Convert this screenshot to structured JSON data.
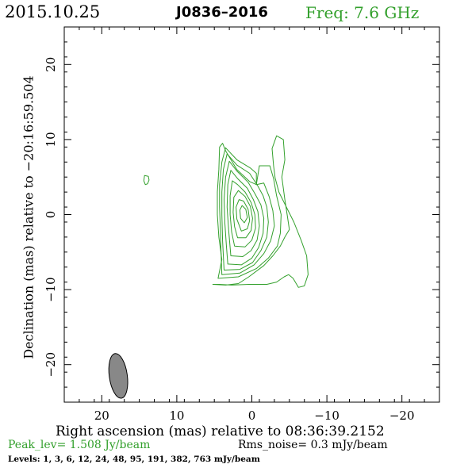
{
  "header": {
    "date": "2015.10.25",
    "source": "J0836–2016",
    "freq": "Freq: 7.6 GHz"
  },
  "footer": {
    "peak": "Peak_lev=  1.508 Jy/beam",
    "rms": "Rms_noise=  0.3 mJy/beam",
    "levels": "Levels:   1,   3,   6,  12,  24,  48,  95, 191, 382, 763 mJy/beam"
  },
  "colors": {
    "contour": "#33a02c",
    "beam": "#888888",
    "frame": "#000000"
  },
  "chart_data": {
    "type": "contour",
    "xlabel": "Right ascension (mas) relative to 08:36:39.2152",
    "ylabel": "Declination (mas) relative to −20:16:59.504",
    "xlim": [
      25,
      -25
    ],
    "ylim": [
      -25,
      25
    ],
    "x_ticks": [
      20,
      10,
      0,
      -10,
      -20
    ],
    "y_ticks": [
      20,
      10,
      0,
      -10,
      -20
    ],
    "x_tick_labels": [
      "20",
      "10",
      "0",
      "−10",
      "−20"
    ],
    "y_tick_labels": [
      "20",
      "10",
      "0",
      "−10",
      "−20"
    ],
    "contour_levels_mJy_per_beam": [
      1,
      3,
      6,
      12,
      24,
      48,
      95,
      191,
      382,
      763
    ],
    "core": {
      "x": 0,
      "y": 0.5
    },
    "contours": [
      [
        [
          5.2,
          -9.3
        ],
        [
          3.5,
          -9.4
        ],
        [
          1.8,
          -9.2
        ],
        [
          0.4,
          -8.3
        ],
        [
          -1.6,
          -6.8
        ],
        [
          -2.8,
          -5.5
        ],
        [
          -3.8,
          -4.2
        ],
        [
          -4.4,
          -3.0
        ],
        [
          -5.0,
          -2.0
        ],
        [
          -4.7,
          0.0
        ],
        [
          -4.4,
          2.0
        ],
        [
          -4.0,
          5.0
        ],
        [
          -4.4,
          7.3
        ],
        [
          -4.2,
          10.0
        ],
        [
          -3.3,
          10.5
        ],
        [
          -2.7,
          8.8
        ],
        [
          -2.9,
          6.5
        ],
        [
          -3.1,
          4.9
        ],
        [
          -3.6,
          3.0
        ],
        [
          -4.6,
          1.0
        ],
        [
          -5.6,
          -1.0
        ],
        [
          -6.6,
          -3.5
        ],
        [
          -7.3,
          -5.5
        ],
        [
          -7.5,
          -8.0
        ],
        [
          -7.0,
          -9.5
        ],
        [
          -6.2,
          -9.7
        ],
        [
          -5.5,
          -8.5
        ],
        [
          -4.9,
          -8.0
        ],
        [
          -4.3,
          -8.3
        ],
        [
          -3.3,
          -9.0
        ],
        [
          -2.0,
          -9.3
        ],
        [
          0.4,
          -9.3
        ],
        [
          2.7,
          -9.4
        ],
        [
          4.3,
          -9.3
        ],
        [
          5.2,
          -9.3
        ]
      ],
      [
        [
          4.5,
          -8.5
        ],
        [
          1.8,
          -8.3
        ],
        [
          -0.6,
          -7.2
        ],
        [
          -2.2,
          -5.8
        ],
        [
          -3.4,
          -4.2
        ],
        [
          -3.8,
          -2.5
        ],
        [
          -3.9,
          0.0
        ],
        [
          -3.3,
          2.5
        ],
        [
          -2.9,
          4.8
        ],
        [
          -2.4,
          6.5
        ],
        [
          -1.0,
          6.5
        ],
        [
          -0.6,
          4.0
        ],
        [
          0.3,
          4.4
        ],
        [
          2.0,
          6.0
        ],
        [
          3.5,
          8.5
        ],
        [
          3.9,
          9.5
        ],
        [
          4.3,
          9.0
        ],
        [
          4.4,
          6.0
        ],
        [
          4.6,
          3.0
        ],
        [
          4.6,
          0.0
        ],
        [
          4.4,
          -3.0
        ],
        [
          4.0,
          -6.0
        ],
        [
          4.5,
          -8.5
        ]
      ],
      [
        [
          4.0,
          -8.0
        ],
        [
          1.6,
          -7.8
        ],
        [
          -0.3,
          -6.7
        ],
        [
          -1.6,
          -5.2
        ],
        [
          -2.5,
          -3.5
        ],
        [
          -3.0,
          -1.5
        ],
        [
          -2.8,
          0.5
        ],
        [
          -2.3,
          2.4
        ],
        [
          -1.6,
          4.2
        ],
        [
          -0.6,
          4.0
        ],
        [
          -0.6,
          5.5
        ],
        [
          0.2,
          6.2
        ],
        [
          2.0,
          7.3
        ],
        [
          3.5,
          8.9
        ],
        [
          4.0,
          7.0
        ],
        [
          4.3,
          4.0
        ],
        [
          4.3,
          1.0
        ],
        [
          4.2,
          -2.0
        ],
        [
          4.1,
          -5.0
        ],
        [
          4.0,
          -8.0
        ]
      ],
      [
        [
          3.7,
          -7.4
        ],
        [
          1.6,
          -7.3
        ],
        [
          -0.1,
          -6.4
        ],
        [
          -1.2,
          -4.8
        ],
        [
          -2.0,
          -3.0
        ],
        [
          -2.2,
          -1.0
        ],
        [
          -2.0,
          1.0
        ],
        [
          -1.5,
          2.5
        ],
        [
          -0.8,
          3.8
        ],
        [
          0.3,
          5.5
        ],
        [
          2.0,
          6.6
        ],
        [
          3.3,
          8.1
        ],
        [
          3.8,
          6.0
        ],
        [
          4.0,
          3.0
        ],
        [
          4.0,
          0.0
        ],
        [
          3.9,
          -3.5
        ],
        [
          3.7,
          -7.4
        ]
      ],
      [
        [
          3.2,
          -6.6
        ],
        [
          1.4,
          -6.7
        ],
        [
          0.0,
          -5.8
        ],
        [
          -0.9,
          -4.4
        ],
        [
          -1.5,
          -2.5
        ],
        [
          -1.6,
          -0.5
        ],
        [
          -1.2,
          1.3
        ],
        [
          -0.4,
          2.8
        ],
        [
          0.5,
          4.3
        ],
        [
          2.0,
          5.8
        ],
        [
          3.0,
          7.1
        ],
        [
          3.5,
          5.0
        ],
        [
          3.7,
          2.0
        ],
        [
          3.6,
          -1.0
        ],
        [
          3.4,
          -4.0
        ],
        [
          3.2,
          -6.6
        ]
      ],
      [
        [
          2.8,
          -5.5
        ],
        [
          1.2,
          -5.6
        ],
        [
          0.1,
          -4.8
        ],
        [
          -0.7,
          -3.4
        ],
        [
          -1.0,
          -1.5
        ],
        [
          -0.8,
          0.4
        ],
        [
          -0.2,
          2.0
        ],
        [
          0.6,
          3.5
        ],
        [
          1.9,
          4.8
        ],
        [
          2.8,
          5.9
        ],
        [
          3.2,
          4.0
        ],
        [
          3.3,
          1.0
        ],
        [
          3.1,
          -2.0
        ],
        [
          2.8,
          -5.5
        ]
      ],
      [
        [
          2.3,
          -4.2
        ],
        [
          0.9,
          -4.3
        ],
        [
          0.0,
          -3.4
        ],
        [
          -0.5,
          -1.8
        ],
        [
          -0.4,
          0.0
        ],
        [
          0.1,
          1.6
        ],
        [
          0.9,
          3.0
        ],
        [
          1.9,
          4.0
        ],
        [
          2.6,
          4.5
        ],
        [
          2.9,
          2.5
        ],
        [
          2.9,
          0.0
        ],
        [
          2.7,
          -2.3
        ],
        [
          2.3,
          -4.2
        ]
      ],
      [
        [
          1.9,
          -3.1
        ],
        [
          0.8,
          -3.1
        ],
        [
          0.1,
          -2.1
        ],
        [
          -0.1,
          -0.5
        ],
        [
          0.2,
          1.1
        ],
        [
          0.9,
          2.4
        ],
        [
          1.8,
          3.2
        ],
        [
          2.4,
          2.3
        ],
        [
          2.5,
          0.3
        ],
        [
          2.3,
          -1.6
        ],
        [
          1.9,
          -3.1
        ]
      ],
      [
        [
          1.4,
          -2.2
        ],
        [
          0.6,
          -1.9
        ],
        [
          0.3,
          -0.8
        ],
        [
          0.5,
          0.7
        ],
        [
          1.1,
          1.8
        ],
        [
          1.7,
          2.0
        ],
        [
          2.1,
          1.0
        ],
        [
          2.0,
          -0.6
        ],
        [
          1.4,
          -2.2
        ]
      ],
      [
        [
          1.0,
          -1.1
        ],
        [
          0.6,
          -0.4
        ],
        [
          0.8,
          0.7
        ],
        [
          1.3,
          1.2
        ],
        [
          1.6,
          0.6
        ],
        [
          1.5,
          -0.5
        ],
        [
          1.0,
          -1.1
        ]
      ]
    ],
    "isolated_contours": [
      [
        [
          14.3,
          5.2
        ],
        [
          13.8,
          5.1
        ],
        [
          13.7,
          4.6
        ],
        [
          13.9,
          4.1
        ],
        [
          14.2,
          4.0
        ],
        [
          14.4,
          4.5
        ],
        [
          14.3,
          5.2
        ]
      ]
    ],
    "beam": {
      "center_x": 17.8,
      "center_y": -21.5,
      "major_mas": 6.0,
      "minor_mas": 2.4
    }
  }
}
